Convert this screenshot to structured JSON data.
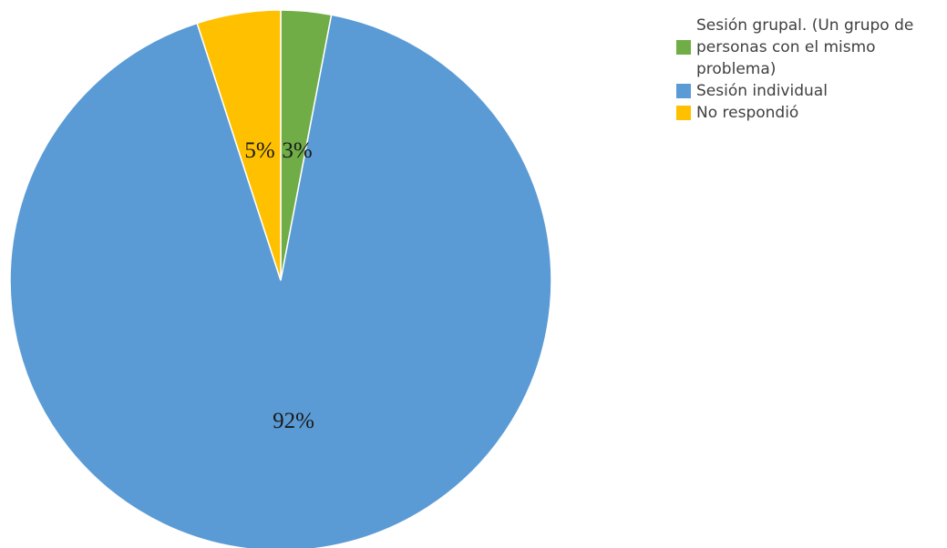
{
  "chart_data": {
    "type": "pie",
    "title": "",
    "slices": [
      {
        "label": "Sesión grupal. (Un grupo de personas con el mismo problema)",
        "value": 3,
        "data_label": "3%",
        "color": "#70ad47"
      },
      {
        "label": "Sesión individual",
        "value": 92,
        "data_label": "92%",
        "color": "#5b9bd5"
      },
      {
        "label": "No respondió",
        "value": 5,
        "data_label": "5%",
        "color": "#ffc000"
      }
    ],
    "legend_position": "top-right"
  }
}
